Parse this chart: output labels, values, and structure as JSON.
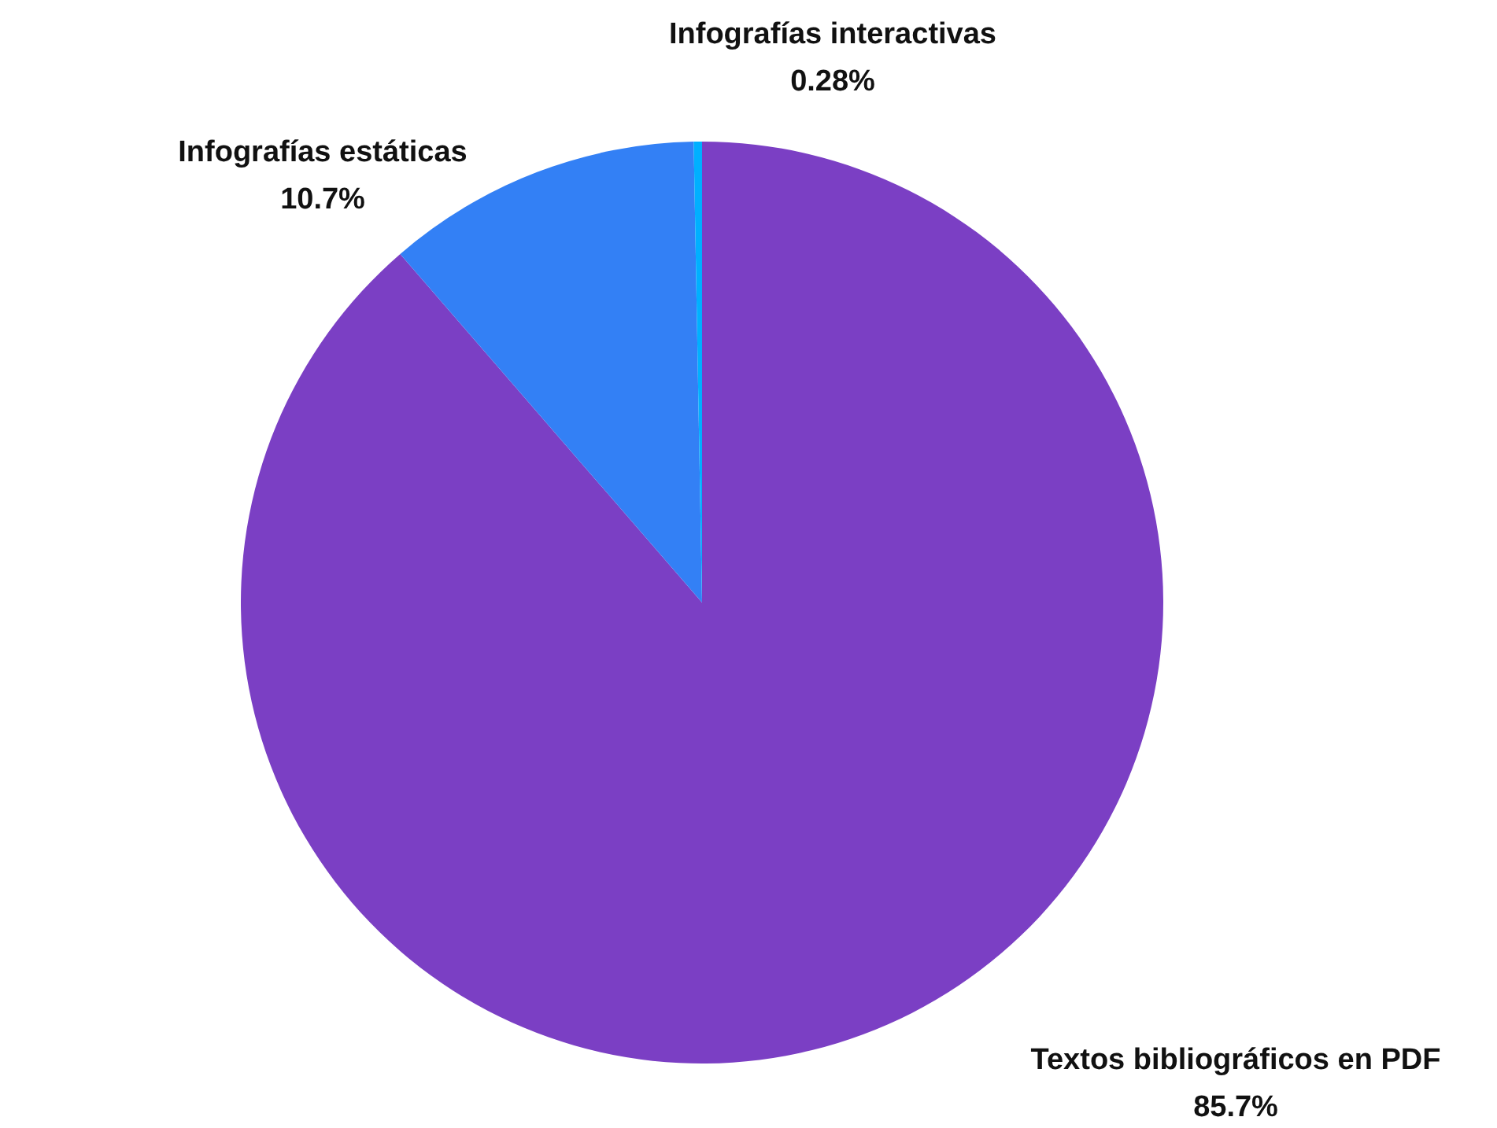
{
  "chart_data": {
    "type": "pie",
    "categories": [
      "Textos bibliográficos en PDF",
      "Infografías estáticas",
      "Infografías interactivas"
    ],
    "values": [
      85.7,
      10.7,
      0.28
    ],
    "colors": [
      "#7b3fc4",
      "#3380f5",
      "#00b0ff"
    ],
    "value_labels": [
      "85.7%",
      "10.7%",
      "0.28%"
    ],
    "legend": false
  }
}
